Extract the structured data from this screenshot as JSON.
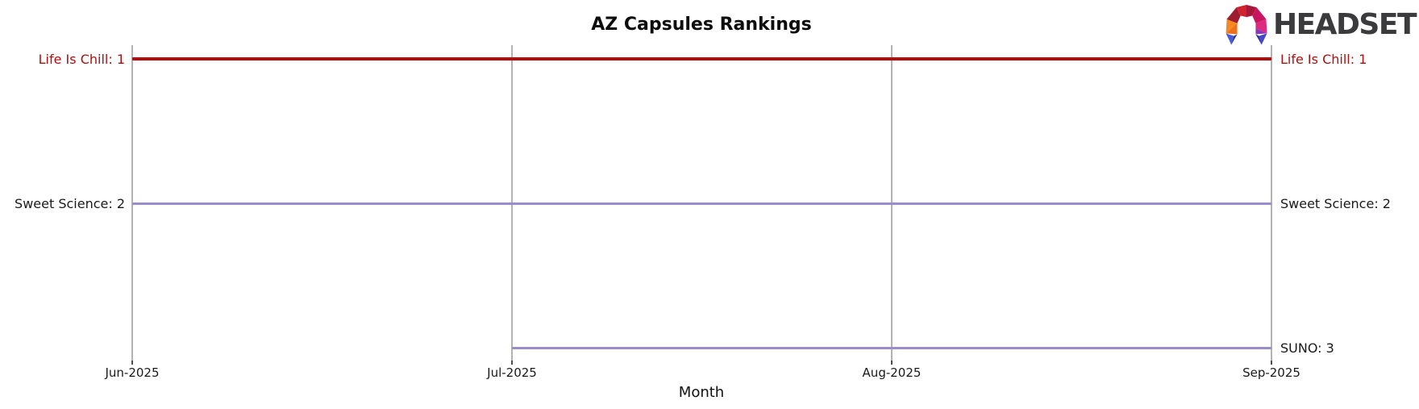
{
  "logo": {
    "text": "HEADSET",
    "icon": "headset-faceted-arch-icon"
  },
  "colors": {
    "rank1_red": "#b20e0e",
    "rank_purple": "#9a8cce",
    "gridline_gray": "#b3b3b3",
    "title_black": "#0d0d0d",
    "logo_gray": "#3b3b3d"
  },
  "chart_data": {
    "type": "line",
    "subtype": "bump-ranking",
    "title": "AZ Capsules Rankings",
    "xlabel": "Month",
    "ylabel": "",
    "x": [
      "Jun-2025",
      "Jul-2025",
      "Aug-2025",
      "Sep-2025"
    ],
    "y_axis_meaning": "rank (1 = top)",
    "ylim": [
      1,
      3
    ],
    "grid": "vertical gridline at each month, no horizontal axis line",
    "legend": "inline labels at both line ends",
    "series": [
      {
        "name": "Life Is Chill",
        "values": [
          1,
          1,
          1,
          1
        ],
        "color": "#b20e0e",
        "line_width": 4,
        "label": "Life Is Chill: 1",
        "label_color": "#b20e0e"
      },
      {
        "name": "Sweet Science",
        "values": [
          2,
          2,
          2,
          2
        ],
        "color": "#9a8cce",
        "line_width": 3,
        "label": "Sweet Science: 2",
        "label_color": "#1a1a1a"
      },
      {
        "name": "SUNO",
        "values": [
          null,
          3,
          3,
          3
        ],
        "color": "#9a8cce",
        "line_width": 3,
        "label": "SUNO: 3",
        "label_color": "#1a1a1a"
      }
    ]
  }
}
